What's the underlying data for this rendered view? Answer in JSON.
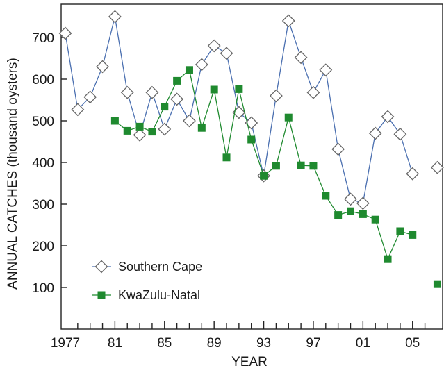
{
  "chart_data": {
    "type": "line",
    "title": "",
    "xlabel": "YEAR",
    "ylabel": "ANNUAL CATCHES (thousand oysters)",
    "xlim": [
      1977,
      2007
    ],
    "ylim": [
      0,
      780
    ],
    "x_ticks": [
      {
        "value": 1977,
        "label": "1977"
      },
      {
        "value": 1981,
        "label": "81"
      },
      {
        "value": 1985,
        "label": "85"
      },
      {
        "value": 1989,
        "label": "89"
      },
      {
        "value": 1993,
        "label": "93"
      },
      {
        "value": 1997,
        "label": "97"
      },
      {
        "value": 2001,
        "label": "01"
      },
      {
        "value": 2005,
        "label": "05"
      }
    ],
    "y_ticks": [
      100,
      200,
      300,
      400,
      500,
      600,
      700
    ],
    "grid": false,
    "legend": "bottom-left",
    "series": [
      {
        "name": "Southern Cape",
        "marker": "open-diamond",
        "color": "#4a6fb0",
        "points": [
          [
            1977,
            710
          ],
          [
            1978,
            527
          ],
          [
            1979,
            557
          ],
          [
            1980,
            630
          ],
          [
            1981,
            750
          ],
          [
            1982,
            568
          ],
          [
            1983,
            466
          ],
          [
            1984,
            568
          ],
          [
            1985,
            480
          ],
          [
            1986,
            552
          ],
          [
            1987,
            500
          ],
          [
            1988,
            635
          ],
          [
            1989,
            680
          ],
          [
            1990,
            662
          ],
          [
            1991,
            520
          ],
          [
            1992,
            495
          ],
          [
            1993,
            368
          ],
          [
            1994,
            560
          ],
          [
            1995,
            740
          ],
          [
            1996,
            652
          ],
          [
            1997,
            568
          ],
          [
            1998,
            622
          ],
          [
            1999,
            432
          ],
          [
            2000,
            312
          ],
          [
            2001,
            302
          ],
          [
            2002,
            470
          ],
          [
            2003,
            510
          ],
          [
            2004,
            468
          ],
          [
            2005,
            373
          ]
        ],
        "isolated_points": [
          [
            2007,
            388
          ]
        ]
      },
      {
        "name": "KwaZulu-Natal",
        "marker": "filled-square",
        "color": "#1f8a2f",
        "points": [
          [
            1981,
            500
          ],
          [
            1982,
            476
          ],
          [
            1983,
            486
          ],
          [
            1984,
            474
          ],
          [
            1985,
            534
          ],
          [
            1986,
            596
          ],
          [
            1987,
            622
          ],
          [
            1988,
            483
          ],
          [
            1989,
            575
          ],
          [
            1990,
            412
          ],
          [
            1991,
            576
          ],
          [
            1992,
            455
          ],
          [
            1993,
            368
          ],
          [
            1994,
            392
          ],
          [
            1995,
            508
          ],
          [
            1996,
            393
          ],
          [
            1997,
            392
          ],
          [
            1998,
            320
          ],
          [
            1999,
            274
          ],
          [
            2000,
            283
          ],
          [
            2001,
            276
          ],
          [
            2002,
            263
          ],
          [
            2003,
            168
          ],
          [
            2004,
            235
          ],
          [
            2005,
            226
          ]
        ],
        "isolated_points": [
          [
            2007,
            108
          ]
        ]
      }
    ]
  }
}
